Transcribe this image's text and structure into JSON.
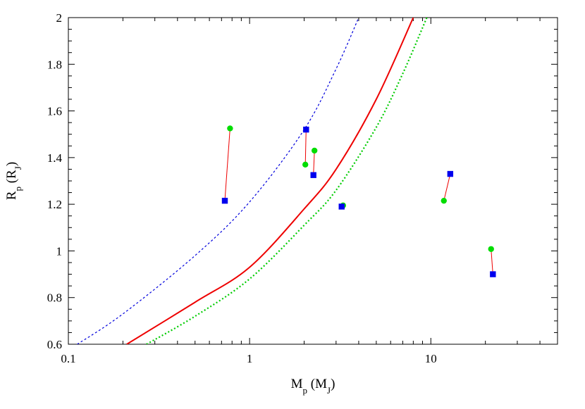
{
  "chart_data": {
    "type": "scatter",
    "xscale": "log",
    "xlim": [
      0.1,
      50
    ],
    "ylim": [
      0.6,
      2.0
    ],
    "xticks": [
      0.1,
      1,
      10
    ],
    "xtick_labels": [
      "0.1",
      "1",
      "10"
    ],
    "yticks": [
      0.6,
      0.8,
      1.0,
      1.2,
      1.4,
      1.6,
      1.8,
      2.0
    ],
    "ytick_labels": [
      "0.6",
      "0.8",
      "1",
      "1.2",
      "1.4",
      "1.6",
      "1.8",
      "2"
    ],
    "xlabel": {
      "main": "M",
      "sub": "p",
      "paren_main": "M",
      "paren_sub": "J"
    },
    "ylabel": {
      "main": "R",
      "sub": "p",
      "paren_main": "R",
      "paren_sub": "J"
    },
    "grid": false,
    "colors": {
      "square": "#0000ee",
      "circle": "#00dd00",
      "pair_line": "#ee0000",
      "solid_curve": "#ee0000",
      "dotted_curve": "#00cc00",
      "dashed_curve": "#0000dd"
    },
    "curves": [
      {
        "style": "dashed",
        "points": [
          [
            0.112,
            0.6
          ],
          [
            0.2,
            0.73
          ],
          [
            0.5,
            0.98
          ],
          [
            1.0,
            1.21
          ],
          [
            2.0,
            1.52
          ],
          [
            3.0,
            1.78
          ],
          [
            4.0,
            2.0
          ]
        ]
      },
      {
        "style": "solid",
        "points": [
          [
            0.21,
            0.6
          ],
          [
            0.5,
            0.78
          ],
          [
            1.0,
            0.93
          ],
          [
            2.0,
            1.18
          ],
          [
            3.0,
            1.35
          ],
          [
            5.0,
            1.65
          ],
          [
            8.0,
            2.0
          ]
        ]
      },
      {
        "style": "dotted",
        "points": [
          [
            0.27,
            0.6
          ],
          [
            0.5,
            0.72
          ],
          [
            1.0,
            0.88
          ],
          [
            2.0,
            1.11
          ],
          [
            3.0,
            1.26
          ],
          [
            5.0,
            1.53
          ],
          [
            7.0,
            1.76
          ],
          [
            9.5,
            2.0
          ]
        ]
      }
    ],
    "pairs": [
      {
        "circle": [
          0.78,
          1.525
        ],
        "square": [
          0.73,
          1.215
        ]
      },
      {
        "circle": [
          2.03,
          1.37
        ],
        "square": [
          2.05,
          1.52
        ]
      },
      {
        "circle": [
          2.28,
          1.43
        ],
        "square": [
          2.25,
          1.325
        ]
      },
      {
        "circle": [
          3.28,
          1.195
        ],
        "square": [
          3.22,
          1.19
        ]
      },
      {
        "circle": [
          11.8,
          1.215
        ],
        "square": [
          12.8,
          1.33
        ]
      },
      {
        "circle": [
          21.5,
          1.008
        ],
        "square": [
          22.0,
          0.9
        ]
      }
    ]
  }
}
